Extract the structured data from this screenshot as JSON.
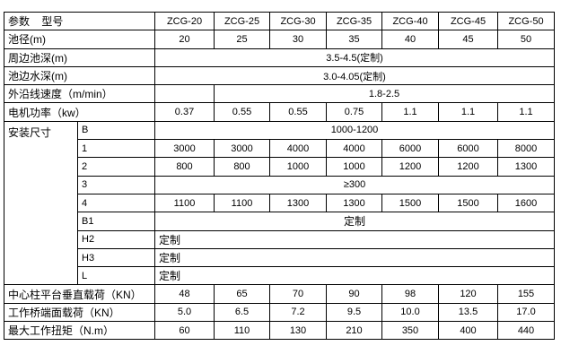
{
  "header": {
    "label": "参数    型号",
    "models": [
      "ZCG-20",
      "ZCG-25",
      "ZCG-30",
      "ZCG-35",
      "ZCG-40",
      "ZCG-45",
      "ZCG-50"
    ]
  },
  "rows": {
    "diameter": {
      "label": "池径(m)",
      "values": [
        "20",
        "25",
        "30",
        "35",
        "40",
        "45",
        "50"
      ]
    },
    "edge_depth": {
      "label": "周边池深(m)",
      "value": "3.5-4.5(定制)"
    },
    "water_depth": {
      "label": "池边水深(m)",
      "value": "3.0-4.05(定制)"
    },
    "speed": {
      "label": "外沿线速度（m/min）",
      "value": "1.8-2.5"
    },
    "power": {
      "label": "电机功率（kw）",
      "values": [
        "0.37",
        "0.55",
        "0.55",
        "0.75",
        "1.1",
        "1.1",
        "1.1"
      ]
    },
    "install": {
      "label": "安装尺寸",
      "B": {
        "label": "B",
        "value": "1000-1200"
      },
      "d1": {
        "label": "1",
        "values": [
          "3000",
          "3000",
          "4000",
          "4000",
          "6000",
          "6000",
          "8000"
        ]
      },
      "d2": {
        "label": "2",
        "values": [
          "800",
          "800",
          "1000",
          "1000",
          "1200",
          "1200",
          "1300"
        ]
      },
      "d3": {
        "label": "3",
        "value": "≥300"
      },
      "d4": {
        "label": "4",
        "values": [
          "1100",
          "1100",
          "1300",
          "1300",
          "1500",
          "1500",
          "1600"
        ]
      },
      "B1": {
        "label": "B1",
        "value": "定制"
      },
      "H2": {
        "label": "H2",
        "value": "定制"
      },
      "H3": {
        "label": "H3",
        "value": "定制"
      },
      "L": {
        "label": "L",
        "value": "定制"
      }
    },
    "vertical_load": {
      "label": "中心柱平台垂直载荷（KN）",
      "values": [
        "48",
        "65",
        "70",
        "90",
        "98",
        "120",
        "155"
      ]
    },
    "bridge_load": {
      "label": "工作桥端面载荷（KN）",
      "values": [
        "5.0",
        "6.5",
        "7.2",
        "9.5",
        "10.0",
        "13.5",
        "17.0"
      ]
    },
    "torque": {
      "label": "最大工作扭矩（N.m）",
      "values": [
        "60",
        "110",
        "130",
        "210",
        "350",
        "400",
        "440"
      ]
    }
  }
}
